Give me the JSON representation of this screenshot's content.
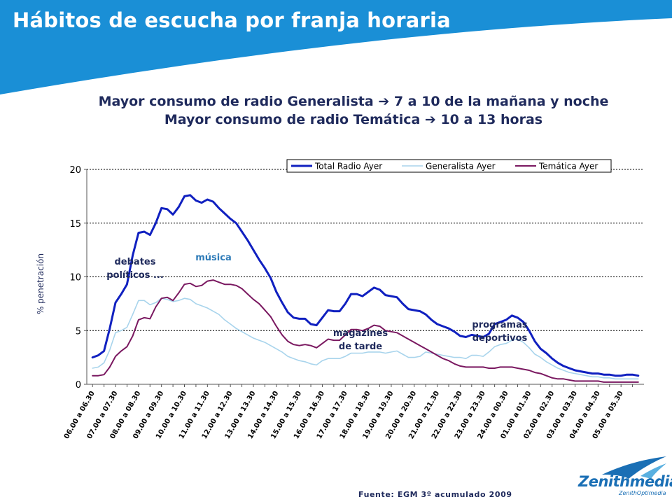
{
  "slide": {
    "title": "Hábitos de escucha por franja horaria",
    "headline_1_pre": "Mayor consumo de radio Generalista ",
    "headline_1_post": " 7 a 10 de la mañana y noche",
    "headline_2_pre": "Mayor consumo de radio Temática ",
    "headline_2_post": " 10 a 13 horas",
    "arrow_icon": "arrow-right-icon",
    "arrow_glyph": "➔",
    "source": "Fuente: EGM 3º acumulado 2009",
    "logo_name": "Zenithmedia",
    "logo_sub": "ZenithOptimedia",
    "banner_color": "#1a8fd6"
  },
  "chart_data": {
    "type": "line",
    "ylabel": "% penetración",
    "xlabel": "",
    "ylim": [
      0,
      20
    ],
    "yticks": [
      0,
      5,
      10,
      15,
      20
    ],
    "grid": true,
    "legend_position": "top-right",
    "categories": [
      "06.00 a 06.30",
      "07.00 a 07.30",
      "08.00 a 08.30",
      "09.00 a 09.30",
      "10.00 a 10.30",
      "11.00 a 11.30",
      "12.00 a 12.30",
      "13.00 a 13.30",
      "14.00 a 14.30",
      "15.00 a 15.30",
      "16.00 a 16.30",
      "17.00 a 17.30",
      "18.00 a 18.30",
      "19.00 a 19.30",
      "20.00 a 20.30",
      "21.00 a 21.30",
      "22.00 a 22.30",
      "23.00 a 23.30",
      "24.00 a 00.30",
      "01.00 a 01.30",
      "02.00 a 02.30",
      "03.00 a 03.30",
      "04.00 a 04.30",
      "05.00 a 05.30"
    ],
    "x": [
      6.0,
      6.25,
      6.5,
      6.75,
      7.0,
      7.25,
      7.5,
      7.75,
      8.0,
      8.25,
      8.5,
      8.75,
      9.0,
      9.25,
      9.5,
      9.75,
      10.0,
      10.25,
      10.5,
      10.75,
      11.0,
      11.25,
      11.5,
      11.75,
      12.0,
      12.25,
      12.5,
      12.75,
      13.0,
      13.25,
      13.5,
      13.75,
      14.0,
      14.25,
      14.5,
      14.75,
      15.0,
      15.25,
      15.5,
      15.75,
      16.0,
      16.25,
      16.5,
      16.75,
      17.0,
      17.25,
      17.5,
      17.75,
      18.0,
      18.25,
      18.5,
      18.75,
      19.0,
      19.25,
      19.5,
      19.75,
      20.0,
      20.25,
      20.5,
      20.75,
      21.0,
      21.25,
      21.5,
      21.75,
      22.0,
      22.25,
      22.5,
      22.75,
      23.0,
      23.25,
      23.5,
      23.75,
      24.0,
      24.25,
      24.5,
      24.75,
      25.0,
      25.25,
      25.5,
      25.75,
      26.0,
      26.25,
      26.5,
      26.75,
      27.0,
      27.25,
      27.5,
      27.75,
      28.0,
      28.25,
      28.5,
      28.75,
      29.0,
      29.25,
      29.5,
      29.75
    ],
    "series": [
      {
        "name": "Total Radio Ayer",
        "color": "#1020c0",
        "values": [
          2.5,
          2.7,
          3.1,
          5.2,
          7.6,
          8.4,
          9.3,
          12.0,
          14.1,
          14.2,
          13.9,
          15.0,
          16.4,
          16.3,
          15.8,
          16.5,
          17.5,
          17.6,
          17.1,
          16.9,
          17.2,
          17.0,
          16.4,
          15.9,
          15.4,
          15.0,
          14.2,
          13.4,
          12.5,
          11.6,
          10.8,
          9.9,
          8.6,
          7.6,
          6.7,
          6.2,
          6.1,
          6.1,
          5.6,
          5.5,
          6.2,
          6.9,
          6.8,
          6.8,
          7.5,
          8.4,
          8.4,
          8.2,
          8.6,
          9.0,
          8.8,
          8.3,
          8.2,
          8.1,
          7.5,
          7.0,
          6.9,
          6.8,
          6.5,
          6.0,
          5.6,
          5.4,
          5.2,
          4.9,
          4.5,
          4.4,
          4.6,
          4.5,
          4.4,
          4.7,
          5.6,
          5.8,
          6.0,
          6.4,
          6.2,
          5.8,
          5.0,
          4.0,
          3.3,
          2.9,
          2.4,
          2.0,
          1.7,
          1.5,
          1.3,
          1.2,
          1.1,
          1.0,
          1.0,
          0.9,
          0.9,
          0.8,
          0.8,
          0.9,
          0.9,
          0.8
        ]
      },
      {
        "name": "Generalista Ayer",
        "color": "#a8d4ec",
        "values": [
          1.5,
          1.6,
          2.0,
          3.2,
          4.8,
          5.0,
          5.3,
          6.5,
          7.8,
          7.8,
          7.4,
          7.6,
          8.0,
          7.9,
          7.7,
          7.8,
          8.0,
          7.9,
          7.5,
          7.3,
          7.1,
          6.8,
          6.5,
          6.0,
          5.6,
          5.2,
          4.9,
          4.6,
          4.3,
          4.1,
          3.9,
          3.6,
          3.3,
          3.0,
          2.6,
          2.4,
          2.2,
          2.1,
          1.9,
          1.8,
          2.2,
          2.4,
          2.4,
          2.4,
          2.6,
          2.9,
          2.9,
          2.9,
          3.0,
          3.0,
          3.0,
          2.9,
          3.0,
          3.1,
          2.8,
          2.5,
          2.5,
          2.6,
          3.0,
          2.9,
          2.8,
          2.7,
          2.6,
          2.5,
          2.5,
          2.4,
          2.7,
          2.7,
          2.6,
          3.0,
          3.5,
          3.7,
          3.8,
          4.1,
          4.2,
          3.9,
          3.4,
          2.8,
          2.5,
          2.1,
          1.8,
          1.5,
          1.3,
          1.1,
          1.0,
          0.9,
          0.8,
          0.7,
          0.7,
          0.6,
          0.6,
          0.5,
          0.5,
          0.5,
          0.5,
          0.5
        ]
      },
      {
        "name": "Temática Ayer",
        "color": "#7a1860",
        "values": [
          0.8,
          0.8,
          0.9,
          1.6,
          2.6,
          3.1,
          3.5,
          4.5,
          6.0,
          6.2,
          6.1,
          7.2,
          8.0,
          8.1,
          7.8,
          8.5,
          9.3,
          9.4,
          9.1,
          9.2,
          9.6,
          9.7,
          9.5,
          9.3,
          9.3,
          9.2,
          8.9,
          8.4,
          7.9,
          7.5,
          6.9,
          6.3,
          5.4,
          4.6,
          4.0,
          3.7,
          3.6,
          3.7,
          3.6,
          3.4,
          3.8,
          4.2,
          4.1,
          4.1,
          4.6,
          5.1,
          5.1,
          5.0,
          5.2,
          5.5,
          5.4,
          5.0,
          4.9,
          4.8,
          4.5,
          4.2,
          3.9,
          3.6,
          3.3,
          3.0,
          2.7,
          2.4,
          2.2,
          1.9,
          1.7,
          1.6,
          1.6,
          1.6,
          1.6,
          1.5,
          1.5,
          1.6,
          1.6,
          1.6,
          1.5,
          1.4,
          1.3,
          1.1,
          1.0,
          0.8,
          0.6,
          0.5,
          0.5,
          0.4,
          0.3,
          0.3,
          0.3,
          0.3,
          0.3,
          0.2,
          0.2,
          0.2,
          0.2,
          0.2,
          0.2,
          0.2
        ]
      }
    ],
    "annotations": [
      {
        "text": [
          "debates",
          "políticos ..."
        ],
        "color": "#1f2a5c"
      },
      {
        "text": [
          "música"
        ],
        "color": "#2e7bb8"
      },
      {
        "text": [
          "magazines",
          "de tarde"
        ],
        "color": "#1f2a5c"
      },
      {
        "text": [
          "programas",
          "deportivos"
        ],
        "color": "#1f2a5c"
      }
    ]
  }
}
